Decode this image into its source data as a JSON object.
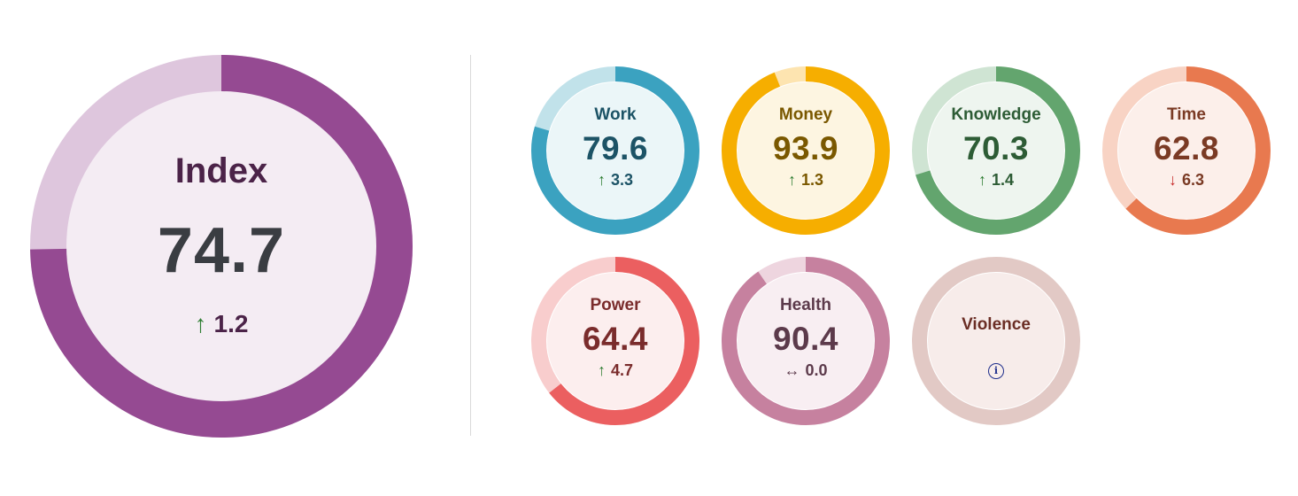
{
  "index": {
    "title": "Index",
    "value": "74.7",
    "change": "1.2",
    "direction": "up",
    "progress": 0.747,
    "colors": {
      "fill": "#954a92",
      "track": "#dec6dd",
      "center": "#f4ecf3",
      "title": "#4b2348",
      "value": "#3a3d42",
      "arrow": "#2e7d32"
    }
  },
  "domains": [
    {
      "key": "work",
      "title": "Work",
      "value": "79.6",
      "change": "3.3",
      "direction": "up",
      "progress": 0.796,
      "colors": {
        "fill": "#3ba2c0",
        "track": "#c1e2ea",
        "center": "#ebf6f8",
        "text": "#1c5366",
        "arrow": "#2e7d32"
      }
    },
    {
      "key": "money",
      "title": "Money",
      "value": "93.9",
      "change": "1.3",
      "direction": "up",
      "progress": 0.939,
      "colors": {
        "fill": "#f6ae00",
        "track": "#fde4b0",
        "center": "#fdf5e1",
        "text": "#7a5800",
        "arrow": "#2e7d32"
      }
    },
    {
      "key": "knowledge",
      "title": "Knowledge",
      "value": "70.3",
      "change": "1.4",
      "direction": "up",
      "progress": 0.703,
      "colors": {
        "fill": "#63a56e",
        "track": "#cfe4d3",
        "center": "#eef5ef",
        "text": "#2d5c35",
        "arrow": "#2e7d32"
      }
    },
    {
      "key": "time",
      "title": "Time",
      "value": "62.8",
      "change": "6.3",
      "direction": "down",
      "progress": 0.628,
      "colors": {
        "fill": "#e8794f",
        "track": "#f8d3c4",
        "center": "#fcefea",
        "text": "#7a3a24",
        "arrow": "#c62828"
      }
    },
    {
      "key": "power",
      "title": "Power",
      "value": "64.4",
      "change": "4.7",
      "direction": "up",
      "progress": 0.644,
      "colors": {
        "fill": "#eb5f60",
        "track": "#f8cdcd",
        "center": "#fceeee",
        "text": "#7a2c2c",
        "arrow": "#2e7d32"
      }
    },
    {
      "key": "health",
      "title": "Health",
      "value": "90.4",
      "change": "0.0",
      "direction": "flat",
      "progress": 0.904,
      "colors": {
        "fill": "#c6819f",
        "track": "#eed5df",
        "center": "#f8eef2",
        "text": "#5c3a4b",
        "arrow": "#5c3a4b"
      }
    },
    {
      "key": "violence",
      "title": "Violence",
      "value": "",
      "change": "",
      "direction": "none",
      "progress": 0,
      "colors": {
        "fill": "#e2c9c5",
        "track": "#e2c9c5",
        "center": "#f7ecea",
        "text": "#6b2e25",
        "arrow": "#6b2e25"
      }
    }
  ],
  "icons": {
    "info": "info-icon",
    "up": "arrow-up-icon",
    "down": "arrow-down-icon",
    "flat": "arrow-left-right-icon"
  }
}
